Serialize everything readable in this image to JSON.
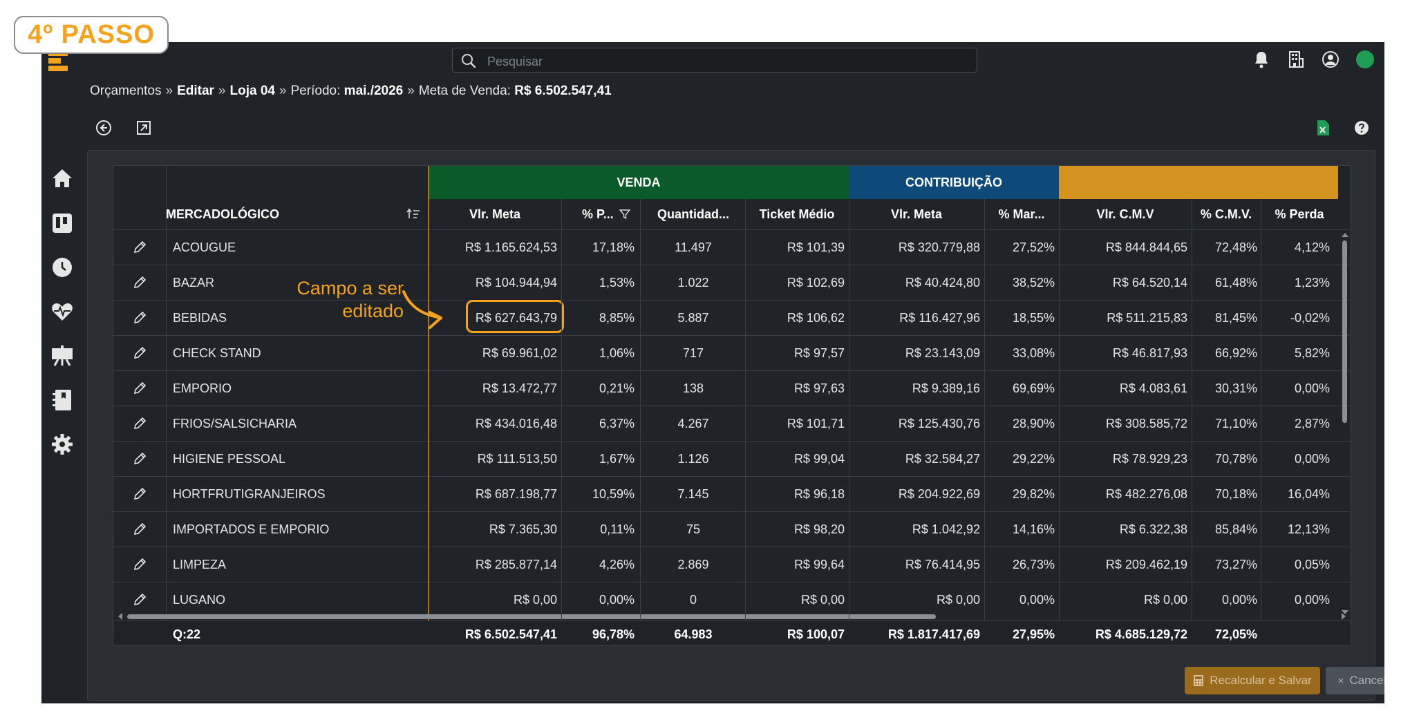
{
  "step_badge": "4º PASSO",
  "search": {
    "placeholder": "Pesquisar"
  },
  "breadcrumb": {
    "part1": "Orçamentos",
    "sep": "»",
    "part2": "Editar",
    "part3": "Loja 04",
    "period_label": "Período:",
    "period_value": "mai./2026",
    "goal_label": "Meta de Venda:",
    "goal_value": "R$ 6.502.547,41"
  },
  "groups": {
    "venda": "VENDA",
    "contribuicao": "CONTRIBUIÇÃO",
    "cmv": ""
  },
  "colors": {
    "venda": "#0b5a2a",
    "contribuicao": "#0d4a7a",
    "cmv": "#d4921f",
    "accent": "#f5a31c"
  },
  "columns": {
    "mercadologico": "MERCADOLÓGICO",
    "vlr_meta": "Vlr. Meta",
    "pct_p": "% P...",
    "quantidade": "Quantidad...",
    "ticket": "Ticket Médio",
    "contrib_vlr_meta": "Vlr. Meta",
    "pct_mar": "% Mar...",
    "vlr_cmv": "Vlr. C.M.V",
    "pct_cmv": "% C.M.V.",
    "pct_perda": "% Perda"
  },
  "rows": [
    {
      "name": "ACOUGUE",
      "vlr_meta": "R$ 1.165.624,53",
      "pct_p": "17,18%",
      "qtd": "11.497",
      "ticket": "R$ 101,39",
      "c_meta": "R$ 320.779,88",
      "pct_mar": "27,52%",
      "cmv": "R$ 844.844,65",
      "pct_cmv": "72,48%",
      "perda": "4,12%"
    },
    {
      "name": "BAZAR",
      "vlr_meta": "R$ 104.944,94",
      "pct_p": "1,53%",
      "qtd": "1.022",
      "ticket": "R$ 102,69",
      "c_meta": "R$ 40.424,80",
      "pct_mar": "38,52%",
      "cmv": "R$ 64.520,14",
      "pct_cmv": "61,48%",
      "perda": "1,23%"
    },
    {
      "name": "BEBIDAS",
      "vlr_meta": "R$ 627.643,79",
      "pct_p": "8,85%",
      "qtd": "5.887",
      "ticket": "R$ 106,62",
      "c_meta": "R$ 116.427,96",
      "pct_mar": "18,55%",
      "cmv": "R$ 511.215,83",
      "pct_cmv": "81,45%",
      "perda": "-0,02%"
    },
    {
      "name": "CHECK STAND",
      "vlr_meta": "R$ 69.961,02",
      "pct_p": "1,06%",
      "qtd": "717",
      "ticket": "R$ 97,57",
      "c_meta": "R$ 23.143,09",
      "pct_mar": "33,08%",
      "cmv": "R$ 46.817,93",
      "pct_cmv": "66,92%",
      "perda": "5,82%"
    },
    {
      "name": "EMPORIO",
      "vlr_meta": "R$ 13.472,77",
      "pct_p": "0,21%",
      "qtd": "138",
      "ticket": "R$ 97,63",
      "c_meta": "R$ 9.389,16",
      "pct_mar": "69,69%",
      "cmv": "R$ 4.083,61",
      "pct_cmv": "30,31%",
      "perda": "0,00%"
    },
    {
      "name": "FRIOS/SALSICHARIA",
      "vlr_meta": "R$ 434.016,48",
      "pct_p": "6,37%",
      "qtd": "4.267",
      "ticket": "R$ 101,71",
      "c_meta": "R$ 125.430,76",
      "pct_mar": "28,90%",
      "cmv": "R$ 308.585,72",
      "pct_cmv": "71,10%",
      "perda": "2,87%"
    },
    {
      "name": "HIGIENE PESSOAL",
      "vlr_meta": "R$ 111.513,50",
      "pct_p": "1,67%",
      "qtd": "1.126",
      "ticket": "R$ 99,04",
      "c_meta": "R$ 32.584,27",
      "pct_mar": "29,22%",
      "cmv": "R$ 78.929,23",
      "pct_cmv": "70,78%",
      "perda": "0,00%"
    },
    {
      "name": "HORTFRUTIGRANJEIROS",
      "vlr_meta": "R$ 687.198,77",
      "pct_p": "10,59%",
      "qtd": "7.145",
      "ticket": "R$ 96,18",
      "c_meta": "R$ 204.922,69",
      "pct_mar": "29,82%",
      "cmv": "R$ 482.276,08",
      "pct_cmv": "70,18%",
      "perda": "16,04%"
    },
    {
      "name": "IMPORTADOS E EMPORIO",
      "vlr_meta": "R$ 7.365,30",
      "pct_p": "0,11%",
      "qtd": "75",
      "ticket": "R$ 98,20",
      "c_meta": "R$ 1.042,92",
      "pct_mar": "14,16%",
      "cmv": "R$ 6.322,38",
      "pct_cmv": "85,84%",
      "perda": "12,13%"
    },
    {
      "name": "LIMPEZA",
      "vlr_meta": "R$ 285.877,14",
      "pct_p": "4,26%",
      "qtd": "2.869",
      "ticket": "R$ 99,64",
      "c_meta": "R$ 76.414,95",
      "pct_mar": "26,73%",
      "cmv": "R$ 209.462,19",
      "pct_cmv": "73,27%",
      "perda": "0,05%"
    },
    {
      "name": "LUGANO",
      "vlr_meta": "R$ 0,00",
      "pct_p": "0,00%",
      "qtd": "0",
      "ticket": "R$ 0,00",
      "c_meta": "R$ 0,00",
      "pct_mar": "0,00%",
      "cmv": "R$ 0,00",
      "pct_cmv": "0,00%",
      "perda": "0,00%"
    }
  ],
  "footer": {
    "count": "Q:22",
    "vlr_meta": "R$ 6.502.547,41",
    "pct_p": "96,78%",
    "qtd": "64.983",
    "ticket": "R$ 100,07",
    "c_meta": "R$ 1.817.417,69",
    "pct_mar": "27,95%",
    "cmv": "R$ 4.685.129,72",
    "pct_cmv": "72,05%"
  },
  "annotation": {
    "line1": "Campo a ser",
    "line2": "editado"
  },
  "buttons": {
    "recalc": "Recalcular e Salvar",
    "cancel": "Cancelar"
  }
}
